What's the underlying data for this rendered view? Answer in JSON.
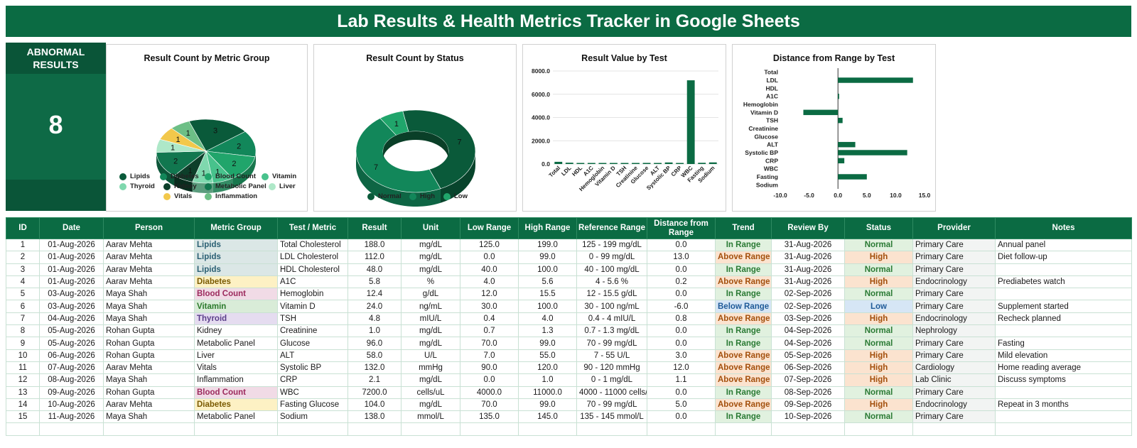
{
  "title": "Lab Results & Health Metrics Tracker in Google Sheets",
  "kpi": {
    "label": "ABNORMAL RESULTS",
    "value": "8"
  },
  "chart_data": [
    {
      "type": "pie",
      "title": "Result Count by Metric Group",
      "categories": [
        "Lipids",
        "Diabetes",
        "Blood Count",
        "Vitamin",
        "Thyroid",
        "Kidney",
        "Metabolic Panel",
        "Liver",
        "Vitals",
        "Inflammation"
      ],
      "values": [
        3,
        2,
        2,
        1,
        1,
        1,
        2,
        1,
        1,
        1
      ],
      "colors": [
        "#0a5a3a",
        "#12875a",
        "#20a56b",
        "#48c28c",
        "#7fd8ae",
        "#0d3f2a",
        "#11774f",
        "#aee8c8",
        "#f2c84b",
        "#6dbf86"
      ],
      "legend": "bottom"
    },
    {
      "type": "pie",
      "title": "Result Count by Status",
      "categories": [
        "Normal",
        "High",
        "Low"
      ],
      "values": [
        7,
        7,
        1
      ],
      "colors": [
        "#0a5a3a",
        "#12875a",
        "#20a56b"
      ],
      "legend": "bottom"
    },
    {
      "type": "bar",
      "title": "Result Value by Test",
      "categories": [
        "Total",
        "LDL",
        "HDL",
        "A1C",
        "Hemoglobin",
        "Vitamin D",
        "TSH",
        "Creatinine",
        "Glucose",
        "ALT",
        "Systolic BP",
        "CRP",
        "WBC",
        "Fasting",
        "Sodium"
      ],
      "values": [
        188,
        112,
        48,
        5.8,
        12.4,
        24,
        4.8,
        1.0,
        96,
        58,
        132,
        2.1,
        7200,
        104,
        138
      ],
      "ylim": [
        0,
        8000
      ],
      "yticks": [
        "0.0",
        "2000.0",
        "4000.0",
        "6000.0",
        "8000.0"
      ],
      "grid": true
    },
    {
      "type": "bar",
      "orientation": "horizontal",
      "title": "Distance from Range by Test",
      "categories": [
        "Total",
        "LDL",
        "HDL",
        "A1C",
        "Hemoglobin",
        "Vitamin D",
        "TSH",
        "Creatinine",
        "Glucose",
        "ALT",
        "Systolic BP",
        "CRP",
        "WBC",
        "Fasting",
        "Sodium"
      ],
      "values": [
        0,
        13,
        0,
        0.2,
        0,
        -6,
        0.8,
        0,
        0,
        3,
        12,
        1.1,
        0,
        5,
        0
      ],
      "xlim": [
        -10,
        15
      ],
      "xticks": [
        "-10.0",
        "-5.0",
        "0.0",
        "5.0",
        "10.0",
        "15.0"
      ]
    }
  ],
  "table": {
    "headers": [
      "ID",
      "Date",
      "Person",
      "Metric Group",
      "Test / Metric",
      "Result",
      "Unit",
      "Low Range",
      "High Range",
      "Reference Range",
      "Distance from Range",
      "Trend",
      "Review By",
      "Status",
      "Provider",
      "Notes"
    ],
    "rows": [
      [
        "1",
        "01-Aug-2026",
        "Aarav Mehta",
        "Lipids",
        "Total Cholesterol",
        "188.0",
        "mg/dL",
        "125.0",
        "199.0",
        "125 - 199 mg/dL",
        "0.0",
        "In Range",
        "31-Aug-2026",
        "Normal",
        "Primary Care",
        "Annual panel"
      ],
      [
        "2",
        "01-Aug-2026",
        "Aarav Mehta",
        "Lipids",
        "LDL Cholesterol",
        "112.0",
        "mg/dL",
        "0.0",
        "99.0",
        "0 - 99 mg/dL",
        "13.0",
        "Above Range",
        "31-Aug-2026",
        "High",
        "Primary Care",
        "Diet follow-up"
      ],
      [
        "3",
        "01-Aug-2026",
        "Aarav Mehta",
        "Lipids",
        "HDL Cholesterol",
        "48.0",
        "mg/dL",
        "40.0",
        "100.0",
        "40 - 100 mg/dL",
        "0.0",
        "In Range",
        "31-Aug-2026",
        "Normal",
        "Primary Care",
        ""
      ],
      [
        "4",
        "01-Aug-2026",
        "Aarav Mehta",
        "Diabetes",
        "A1C",
        "5.8",
        "%",
        "4.0",
        "5.6",
        "4 - 5.6 %",
        "0.2",
        "Above Range",
        "31-Aug-2026",
        "High",
        "Endocrinology",
        "Prediabetes watch"
      ],
      [
        "5",
        "03-Aug-2026",
        "Maya Shah",
        "Blood Count",
        "Hemoglobin",
        "12.4",
        "g/dL",
        "12.0",
        "15.5",
        "12 - 15.5 g/dL",
        "0.0",
        "In Range",
        "02-Sep-2026",
        "Normal",
        "Primary Care",
        ""
      ],
      [
        "6",
        "03-Aug-2026",
        "Maya Shah",
        "Vitamin",
        "Vitamin D",
        "24.0",
        "ng/mL",
        "30.0",
        "100.0",
        "30 - 100 ng/mL",
        "-6.0",
        "Below Range",
        "02-Sep-2026",
        "Low",
        "Primary Care",
        "Supplement started"
      ],
      [
        "7",
        "04-Aug-2026",
        "Maya Shah",
        "Thyroid",
        "TSH",
        "4.8",
        "mIU/L",
        "0.4",
        "4.0",
        "0.4 - 4 mIU/L",
        "0.8",
        "Above Range",
        "03-Sep-2026",
        "High",
        "Endocrinology",
        "Recheck planned"
      ],
      [
        "8",
        "05-Aug-2026",
        "Rohan Gupta",
        "Kidney",
        "Creatinine",
        "1.0",
        "mg/dL",
        "0.7",
        "1.3",
        "0.7 - 1.3 mg/dL",
        "0.0",
        "In Range",
        "04-Sep-2026",
        "Normal",
        "Nephrology",
        ""
      ],
      [
        "9",
        "05-Aug-2026",
        "Rohan Gupta",
        "Metabolic Panel",
        "Glucose",
        "96.0",
        "mg/dL",
        "70.0",
        "99.0",
        "70 - 99 mg/dL",
        "0.0",
        "In Range",
        "04-Sep-2026",
        "Normal",
        "Primary Care",
        "Fasting"
      ],
      [
        "10",
        "06-Aug-2026",
        "Rohan Gupta",
        "Liver",
        "ALT",
        "58.0",
        "U/L",
        "7.0",
        "55.0",
        "7 - 55 U/L",
        "3.0",
        "Above Range",
        "05-Sep-2026",
        "High",
        "Primary Care",
        "Mild elevation"
      ],
      [
        "11",
        "07-Aug-2026",
        "Aarav Mehta",
        "Vitals",
        "Systolic BP",
        "132.0",
        "mmHg",
        "90.0",
        "120.0",
        "90 - 120 mmHg",
        "12.0",
        "Above Range",
        "06-Sep-2026",
        "High",
        "Cardiology",
        "Home reading average"
      ],
      [
        "12",
        "08-Aug-2026",
        "Maya Shah",
        "Inflammation",
        "CRP",
        "2.1",
        "mg/dL",
        "0.0",
        "1.0",
        "0 - 1 mg/dL",
        "1.1",
        "Above Range",
        "07-Sep-2026",
        "High",
        "Lab Clinic",
        "Discuss symptoms"
      ],
      [
        "13",
        "09-Aug-2026",
        "Rohan Gupta",
        "Blood Count",
        "WBC",
        "7200.0",
        "cells/uL",
        "4000.0",
        "11000.0",
        "4000 - 11000 cells/uL",
        "0.0",
        "In Range",
        "08-Sep-2026",
        "Normal",
        "Primary Care",
        ""
      ],
      [
        "14",
        "10-Aug-2026",
        "Aarav Mehta",
        "Diabetes",
        "Fasting Glucose",
        "104.0",
        "mg/dL",
        "70.0",
        "99.0",
        "70 - 99 mg/dL",
        "5.0",
        "Above Range",
        "09-Sep-2026",
        "High",
        "Endocrinology",
        "Repeat in 3 months"
      ],
      [
        "15",
        "11-Aug-2026",
        "Maya Shah",
        "Metabolic Panel",
        "Sodium",
        "138.0",
        "mmol/L",
        "135.0",
        "145.0",
        "135 - 145 mmol/L",
        "0.0",
        "In Range",
        "10-Sep-2026",
        "Normal",
        "Primary Care",
        ""
      ]
    ]
  }
}
